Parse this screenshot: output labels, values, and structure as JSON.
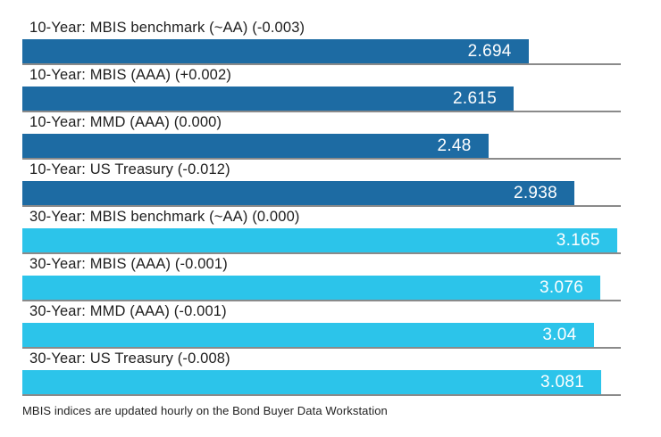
{
  "chart_data": {
    "type": "bar",
    "orientation": "horizontal",
    "value_range": [
      0,
      3.185
    ],
    "grid": false,
    "legend": false,
    "colors": {
      "10-year": "#1d6ba3",
      "30-year": "#2cc4ea"
    },
    "separator_color": "#8a8a8a",
    "rows": [
      {
        "label": "10-Year: MBIS benchmark (~AA) (-0.003)",
        "value": 2.694,
        "display": "2.694",
        "group": "10-year"
      },
      {
        "label": "10-Year: MBIS (AAA) (+0.002)",
        "value": 2.615,
        "display": "2.615",
        "group": "10-year"
      },
      {
        "label": "10-Year: MMD (AAA) (0.000)",
        "value": 2.48,
        "display": "2.48",
        "group": "10-year"
      },
      {
        "label": "10-Year: US Treasury (-0.012)",
        "value": 2.938,
        "display": "2.938",
        "group": "10-year"
      },
      {
        "label": "30-Year: MBIS benchmark (~AA) (0.000)",
        "value": 3.165,
        "display": "3.165",
        "group": "30-year"
      },
      {
        "label": "30-Year: MBIS (AAA) (-0.001)",
        "value": 3.076,
        "display": "3.076",
        "group": "30-year"
      },
      {
        "label": "30-Year: MMD (AAA) (-0.001)",
        "value": 3.04,
        "display": "3.04",
        "group": "30-year"
      },
      {
        "label": "30-Year: US Treasury (-0.008)",
        "value": 3.081,
        "display": "3.081",
        "group": "30-year"
      }
    ],
    "footnote": "MBIS indices are updated hourly on the Bond Buyer Data Workstation"
  }
}
